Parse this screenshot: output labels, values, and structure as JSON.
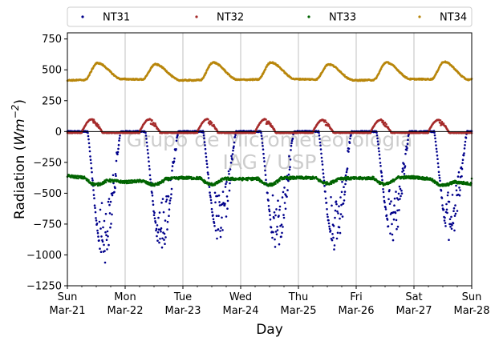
{
  "chart_data": {
    "type": "scatter",
    "xlabel": "Day",
    "ylabel_main": "Radiation (",
    "ylabel_unit": "Wm",
    "ylabel_exp": "−2",
    "ylabel_close": ")",
    "ylim": [
      -1250,
      800
    ],
    "xlim_days": [
      0,
      7
    ],
    "yticks": [
      750,
      500,
      250,
      0,
      -250,
      -500,
      -750,
      -1000,
      -1250
    ],
    "ytick_labels": [
      "750",
      "500",
      "250",
      "0",
      "−250",
      "−500",
      "−750",
      "−1000",
      "−1250"
    ],
    "xticks": [
      {
        "day": 0,
        "line1": "Sun",
        "line2": "Mar-21"
      },
      {
        "day": 1,
        "line1": "Mon",
        "line2": "Mar-22"
      },
      {
        "day": 2,
        "line1": "Tue",
        "line2": "Mar-23"
      },
      {
        "day": 3,
        "line1": "Wed",
        "line2": "Mar-24"
      },
      {
        "day": 4,
        "line1": "Thu",
        "line2": "Mar-25"
      },
      {
        "day": 5,
        "line1": "Fri",
        "line2": "Mar-26"
      },
      {
        "day": 6,
        "line1": "Sat",
        "line2": "Mar-27"
      },
      {
        "day": 7,
        "line1": "Sun",
        "line2": "Mar-28"
      }
    ],
    "grid": "vertical",
    "legend_position": "top",
    "watermark": [
      "Grupo de Micrometeorologia",
      "IAG / USP"
    ],
    "series": [
      {
        "name": "NT31",
        "color": "#00008b",
        "baseline": 0,
        "daily_min": [
          -1070,
          -980,
          -935,
          -1000,
          -975,
          -900,
          -905
        ]
      },
      {
        "name": "NT32",
        "color": "#a52a2a",
        "baseline": 0,
        "daily_max": [
          100,
          100,
          100,
          100,
          95,
          95,
          95
        ]
      },
      {
        "name": "NT33",
        "color": "#006400",
        "daily_level": [
          -360,
          -410,
          -375,
          -385,
          -375,
          -380,
          -370,
          -425
        ],
        "daily_low": [
          -440,
          -440,
          -440,
          -445,
          -430,
          -440,
          -445
        ]
      },
      {
        "name": "NT34",
        "color": "#b8860b",
        "base_level": [
          415,
          425,
          415,
          420,
          425,
          415,
          425,
          420
        ],
        "daily_max": [
          555,
          545,
          560,
          560,
          545,
          560,
          565
        ]
      }
    ]
  }
}
